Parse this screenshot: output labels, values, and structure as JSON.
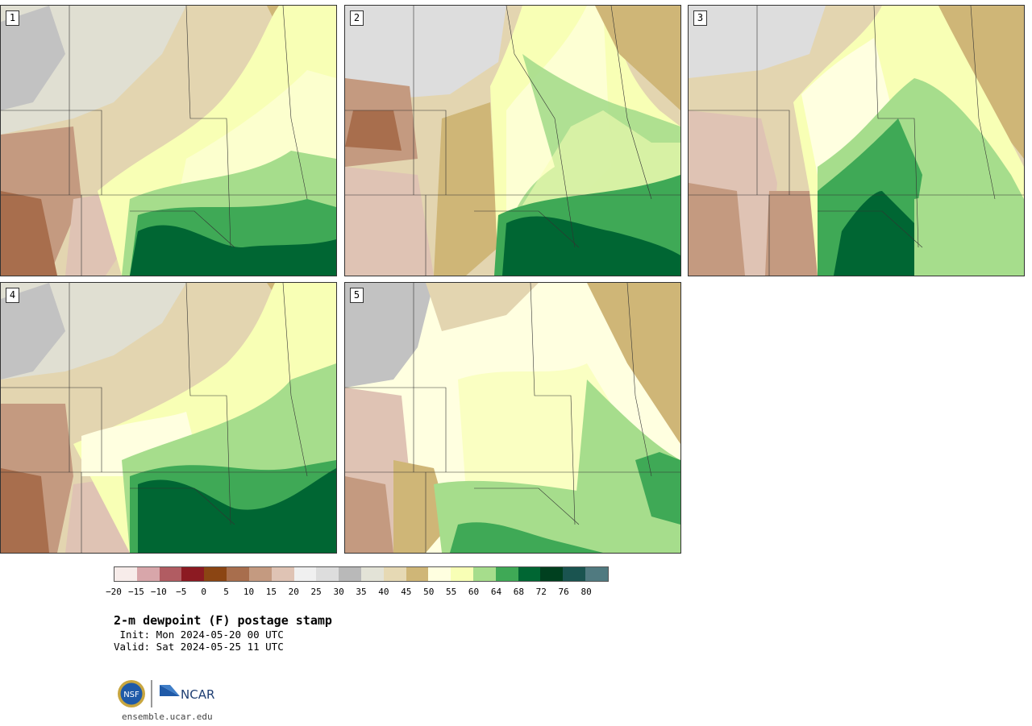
{
  "panels": [
    {
      "id": "1",
      "label": "1"
    },
    {
      "id": "2",
      "label": "2"
    },
    {
      "id": "3",
      "label": "3"
    },
    {
      "id": "4",
      "label": "4"
    },
    {
      "id": "5",
      "label": "5"
    }
  ],
  "colorbar": {
    "colors": [
      "#f7ecea",
      "#d8a6aa",
      "#b15c62",
      "#8c1a22",
      "#8b4513",
      "#a86e4d",
      "#c49a80",
      "#dfc3b4",
      "#f0f0f0",
      "#dddddd",
      "#b9b9b9",
      "#e3e3d7",
      "#e6d9b4",
      "#cfb677",
      "#ffffe0",
      "#f8ffb5",
      "#a6dd8c",
      "#3fa956",
      "#006633",
      "#00401f",
      "#1a5450",
      "#507a80"
    ],
    "ticks": [
      "−20",
      "−15",
      "−10",
      "−5",
      "0",
      "5",
      "10",
      "15",
      "20",
      "25",
      "30",
      "35",
      "40",
      "45",
      "50",
      "55",
      "60",
      "64",
      "68",
      "72",
      "76",
      "80"
    ]
  },
  "title": "2-m dewpoint (F) postage stamp",
  "init_text": " Init: Mon 2024-05-20 00 UTC",
  "valid_text": "Valid: Sat 2024-05-25 11 UTC",
  "logos": {
    "nsf": "NSF",
    "ncar": "NCAR"
  },
  "website": "ensemble.ucar.edu"
}
